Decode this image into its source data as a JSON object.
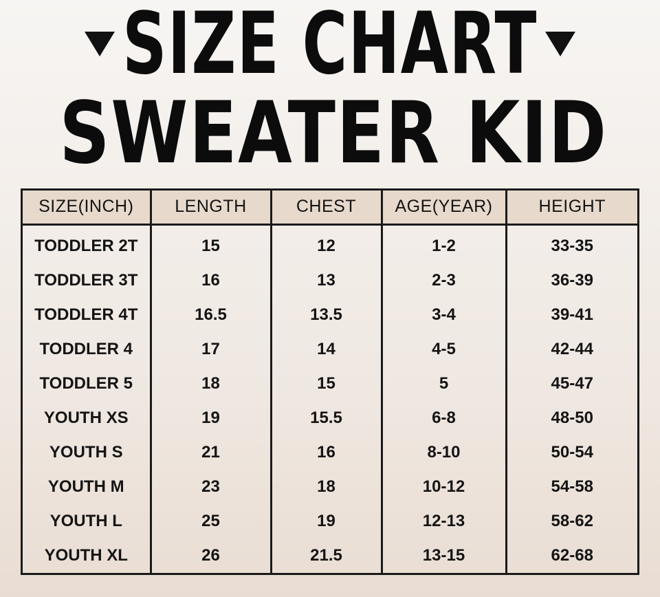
{
  "title": {
    "line1": "SIZE CHART",
    "line2": "SWEATER KID"
  },
  "table": {
    "headers": [
      "SIZE(INCH)",
      "LENGTH",
      "CHEST",
      "AGE(YEAR)",
      "HEIGHT"
    ],
    "rows": [
      [
        "TODDLER 2T",
        "15",
        "12",
        "1-2",
        "33-35"
      ],
      [
        "TODDLER 3T",
        "16",
        "13",
        "2-3",
        "36-39"
      ],
      [
        "TODDLER 4T",
        "16.5",
        "13.5",
        "3-4",
        "39-41"
      ],
      [
        "TODDLER 4",
        "17",
        "14",
        "4-5",
        "42-44"
      ],
      [
        "TODDLER 5",
        "18",
        "15",
        "5",
        "45-47"
      ],
      [
        "YOUTH XS",
        "19",
        "15.5",
        "6-8",
        "48-50"
      ],
      [
        "YOUTH S",
        "21",
        "16",
        "8-10",
        "50-54"
      ],
      [
        "YOUTH M",
        "23",
        "18",
        "10-12",
        "54-58"
      ],
      [
        "YOUTH L",
        "25",
        "19",
        "12-13",
        "58-62"
      ],
      [
        "YOUTH XL",
        "26",
        "21.5",
        "13-15",
        "62-68"
      ]
    ]
  },
  "decor": {
    "left_marker": "triangle-down-icon",
    "right_marker": "triangle-down-icon"
  }
}
